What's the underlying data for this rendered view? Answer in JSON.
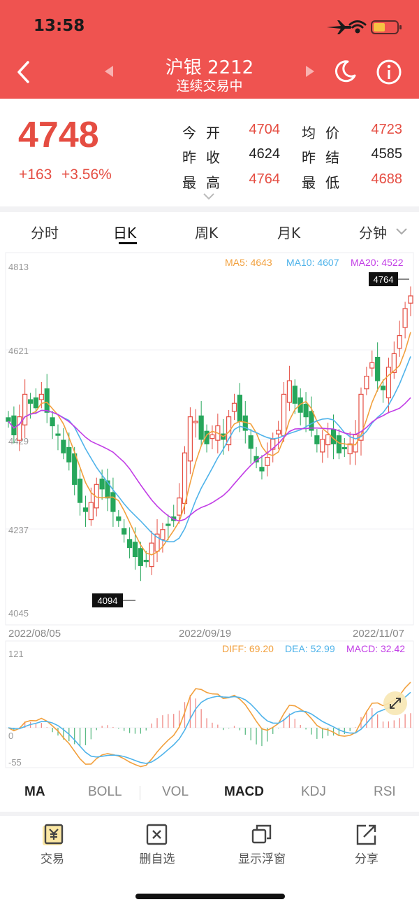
{
  "status_bar": {
    "time": "13:58"
  },
  "header": {
    "title": "沪银 2212",
    "subtitle": "连续交易中"
  },
  "quote": {
    "price": "4748",
    "change": "+163",
    "change_pct": "+3.56%",
    "fields": [
      {
        "label": "今开",
        "value": "4704",
        "color": "#e54d42"
      },
      {
        "label": "均价",
        "value": "4723",
        "color": "#e54d42"
      },
      {
        "label": "昨收",
        "value": "4624",
        "color": "#222222"
      },
      {
        "label": "昨结",
        "value": "4585",
        "color": "#222222"
      },
      {
        "label": "最高",
        "value": "4764",
        "color": "#e54d42"
      },
      {
        "label": "最低",
        "value": "4688",
        "color": "#e54d42"
      }
    ]
  },
  "period_tabs": [
    "分时",
    "日K",
    "周K",
    "月K",
    "分钟"
  ],
  "active_period": "日K",
  "main_chart": {
    "ma_legend": [
      "MA5: 4643",
      "MA10: 4607",
      "MA20: 4522"
    ],
    "ma_colors": [
      "#f2a03d",
      "#4fb3ea",
      "#c23ee6"
    ],
    "y_ticks": [
      "4813",
      "4621",
      "4429",
      "4237",
      "4045"
    ],
    "x_ticks": [
      "2022/08/05",
      "2022/09/19",
      "2022/11/07"
    ],
    "max_label": "4764",
    "min_label": "4094"
  },
  "macd": {
    "legend": [
      "DIFF: 69.20",
      "DEA: 52.99",
      "MACD: 32.42"
    ],
    "legend_colors": [
      "#f2a03d",
      "#4fb3ea",
      "#c23ee6"
    ],
    "y_ticks": [
      "121",
      "0",
      "-55"
    ]
  },
  "indicator_tabs": [
    "MA",
    "BOLL",
    "VOL",
    "MACD",
    "KDJ",
    "RSI"
  ],
  "active_indicators": [
    "MA",
    "MACD"
  ],
  "bottom_nav": [
    "交易",
    "删自选",
    "显示浮窗",
    "分享"
  ],
  "colors": {
    "accent": "#ef5350",
    "up": "#e54d42",
    "down": "#26a65b"
  }
}
